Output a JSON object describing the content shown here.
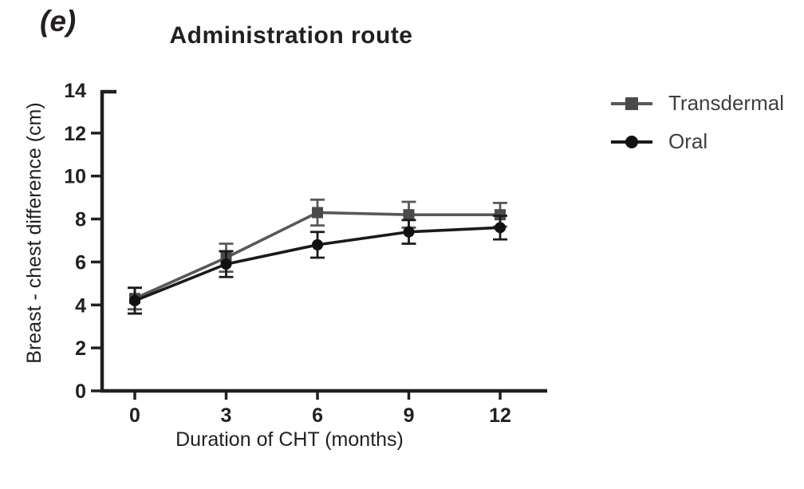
{
  "panel_label": "(e)",
  "title": "Administration route",
  "colors": {
    "axis": "#231f20",
    "transdermal": "#595959",
    "transdermal_marker": "#4a4a4a",
    "oral": "#1a1a1a"
  },
  "legend": {
    "items": [
      {
        "label": "Transdermal",
        "marker": "square",
        "color": "#595959",
        "marker_color": "#4a4a4a"
      },
      {
        "label": "Oral",
        "marker": "circle",
        "color": "#1a1a1a",
        "marker_color": "#111111"
      }
    ]
  },
  "chart_data": {
    "type": "line",
    "title": "Administration route",
    "xlabel": "Duration of CHT (months)",
    "ylabel": "Breast - chest difference (cm)",
    "x": [
      0,
      3,
      6,
      9,
      12
    ],
    "x_ticks": [
      "0",
      "3",
      "6",
      "9",
      "12"
    ],
    "y_ticks": [
      0,
      2,
      4,
      6,
      8,
      10,
      12,
      14
    ],
    "ylim": [
      0,
      14
    ],
    "grid": false,
    "error_bars": true,
    "legend_position": "right",
    "series": [
      {
        "name": "Transdermal",
        "marker": "square",
        "color": "#595959",
        "marker_color": "#4a4a4a",
        "values": [
          4.3,
          6.2,
          8.3,
          8.2,
          8.2
        ],
        "errors": [
          0.5,
          0.65,
          0.6,
          0.6,
          0.55
        ]
      },
      {
        "name": "Oral",
        "marker": "circle",
        "color": "#1a1a1a",
        "marker_color": "#111111",
        "values": [
          4.2,
          5.9,
          6.8,
          7.4,
          7.6
        ],
        "errors": [
          0.6,
          0.6,
          0.6,
          0.55,
          0.55
        ]
      }
    ]
  }
}
